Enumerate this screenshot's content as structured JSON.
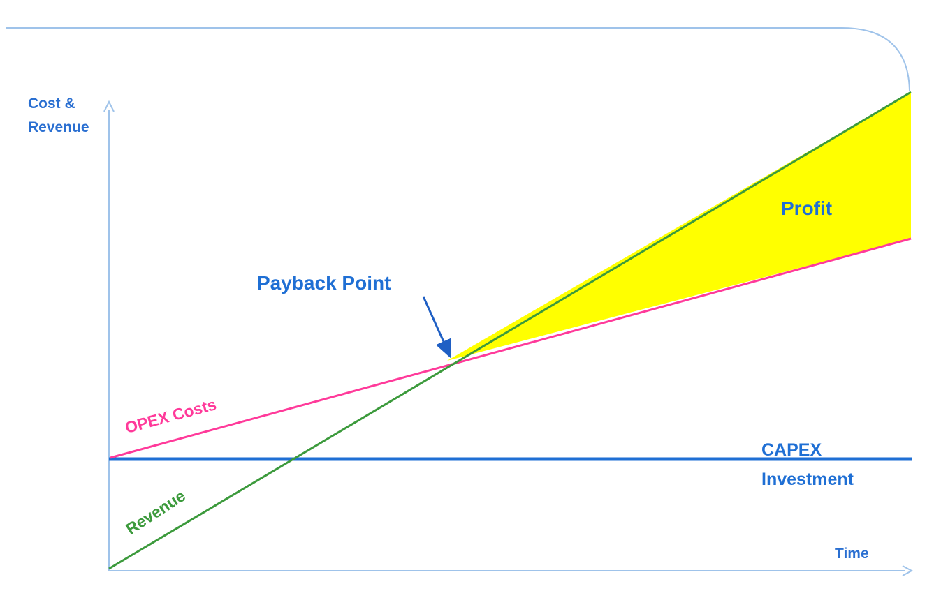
{
  "diagram": {
    "labels": {
      "y_axis": "Cost & Revenue",
      "y_axis_line1": "Cost &",
      "y_axis_line2": "Revenue",
      "x_axis": "Time",
      "profit": "Profit",
      "payback": "Payback Point",
      "opex": "OPEX Costs",
      "revenue": "Revenue",
      "capex_line1": "CAPEX",
      "capex_line2": "Investment"
    },
    "colors": {
      "axis": "#9fc3ea",
      "frame": "#9fc3ea",
      "capex": "#1f6fd4",
      "opex": "#ff3a9a",
      "revenue": "#3c9a3c",
      "profit_fill": "#ffff00",
      "arrow": "#1f5fc4",
      "text_blue": "#1f6fd4"
    },
    "icons": {
      "payback_pointer": "arrow-down-right-icon",
      "axis_arrow_y": "arrow-up-icon",
      "axis_arrow_x": "arrow-right-icon"
    }
  }
}
